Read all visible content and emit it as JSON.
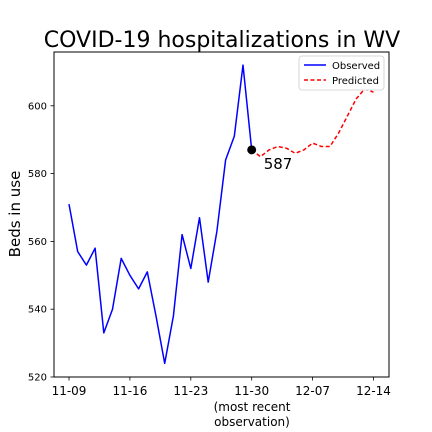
{
  "chart_data": {
    "type": "line",
    "title": "COVID-19 hospitalizations in WV",
    "xlabel": "",
    "ylabel": "Beds in use",
    "x_start": "2020-11-09",
    "xtick_labels": [
      "11-09",
      "11-16",
      "11-23",
      "11-30",
      "12-07",
      "12-14"
    ],
    "x_annotation_line1": "(most recent",
    "x_annotation_line2": "observation)",
    "ylim": [
      520,
      615
    ],
    "yticks": [
      520,
      540,
      560,
      580,
      600
    ],
    "grid": false,
    "legend_position": "top-right",
    "series": [
      {
        "name": "Observed",
        "color": "#0000ff",
        "style": "solid",
        "x": [
          "2020-11-09",
          "2020-11-10",
          "2020-11-11",
          "2020-11-12",
          "2020-11-13",
          "2020-11-14",
          "2020-11-15",
          "2020-11-16",
          "2020-11-17",
          "2020-11-18",
          "2020-11-19",
          "2020-11-20",
          "2020-11-21",
          "2020-11-22",
          "2020-11-23",
          "2020-11-24",
          "2020-11-25",
          "2020-11-26",
          "2020-11-27",
          "2020-11-28",
          "2020-11-29",
          "2020-11-30"
        ],
        "y": [
          571,
          557,
          553,
          558,
          533,
          540,
          555,
          550,
          546,
          551,
          538,
          524,
          538,
          562,
          552,
          567,
          548,
          563,
          584,
          591,
          612,
          587
        ]
      },
      {
        "name": "Predicted",
        "color": "#ff0000",
        "style": "dashed",
        "x": [
          "2020-11-30",
          "2020-12-01",
          "2020-12-02",
          "2020-12-03",
          "2020-12-04",
          "2020-12-05",
          "2020-12-06",
          "2020-12-07",
          "2020-12-08",
          "2020-12-09",
          "2020-12-10",
          "2020-12-11",
          "2020-12-12",
          "2020-12-13",
          "2020-12-14"
        ],
        "y": [
          587,
          585,
          587,
          588,
          587.5,
          586,
          587,
          589,
          588,
          588,
          592,
          597,
          602,
          605,
          604
        ]
      }
    ],
    "annotation": {
      "label": "587",
      "x": "2020-11-30",
      "y": 587
    },
    "legend": [
      "Observed",
      "Predicted"
    ]
  }
}
